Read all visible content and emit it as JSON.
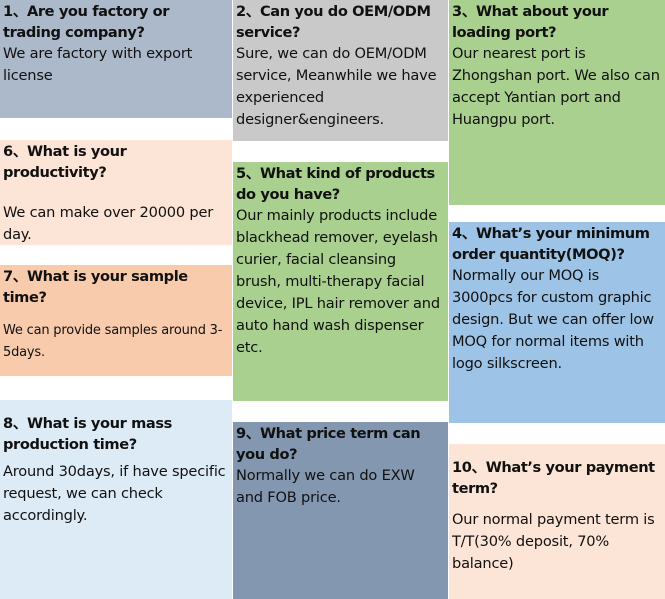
{
  "faq": [
    {
      "q": "1、Are you factory or trading company?",
      "a": "We are factory with export license",
      "color": "#acb9ca"
    },
    {
      "q": "2、Can you do OEM/ODM service?",
      "a": "Sure, we can do OEM/ODM service, Meanwhile we have experienced designer&engineers.",
      "color": "#c9c9c9"
    },
    {
      "q": "3、What about your loading port?",
      "a": "Our nearest port is Zhongshan port.   We also can accept Yantian port and Huangpu port.",
      "color": "#a9d08e"
    },
    {
      "q": "4、What’s your minimum order quantity(MOQ)?",
      "a": "Normally our MOQ is 3000pcs for custom graphic design. But we can offer low MOQ for normal items with logo silkscreen.",
      "color": "#9dc3e6"
    },
    {
      "q": "5、What kind of products do you have?",
      "a": "Our mainly products include blackhead remover, eyelash curier, facial cleansing brush, multi-therapy facial device, IPL hair remover and auto hand wash dispenser etc.",
      "color": "#a9d08e"
    },
    {
      "q": "6、What is your productivity?",
      "a": "We can make over 20000 per day.",
      "color": "#fce4d6"
    },
    {
      "q": "7、What is your sample time?",
      "a": "We can provide samples around 3-5days.",
      "color": "#f8cbad"
    },
    {
      "q": "8、What is your mass production time?",
      "a": "Around 30days, if have specific request, we can check accordingly.",
      "color": "#ddebf7"
    },
    {
      "q": "9、What price term can you do?",
      "a": "Normally we can do EXW and FOB price.",
      "color": "#8497b0"
    },
    {
      "q": "10、What’s your payment term?",
      "a": "Our normal payment term is T/T(30% deposit, 70% balance)",
      "color": "#fce4d6"
    }
  ]
}
